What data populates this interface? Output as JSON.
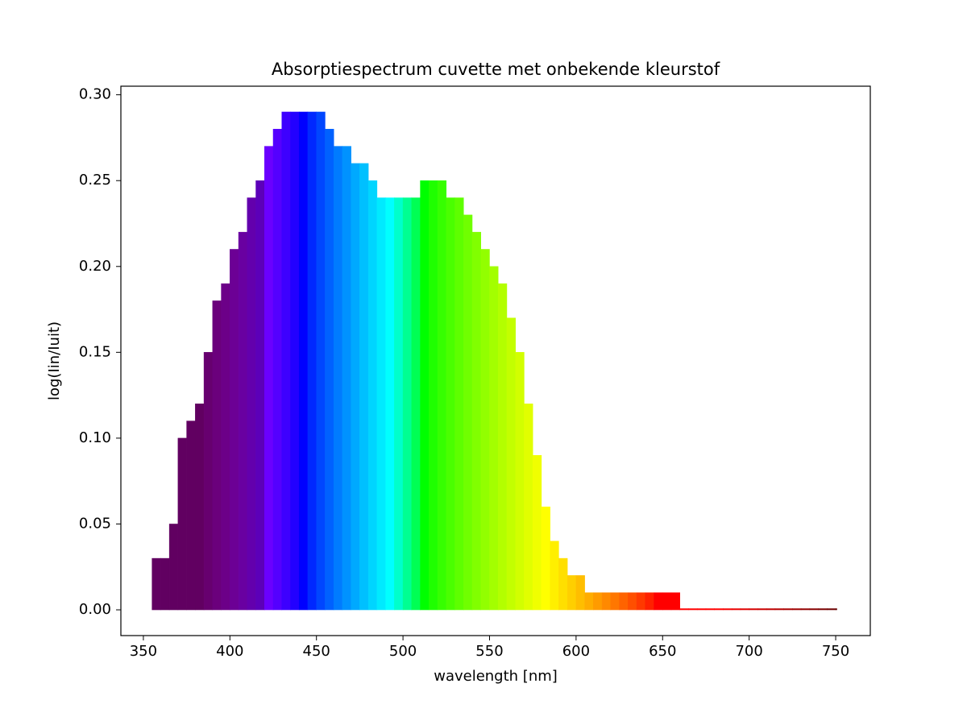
{
  "chart_data": {
    "type": "bar",
    "title": "Absorptiespectrum cuvette met onbekende kleurstof",
    "xlabel": "wavelength [nm]",
    "ylabel": "log(Iin/Iuit)",
    "x": [
      355,
      360,
      365,
      370,
      375,
      380,
      385,
      390,
      395,
      400,
      405,
      410,
      415,
      420,
      425,
      430,
      435,
      440,
      445,
      450,
      455,
      460,
      465,
      470,
      475,
      480,
      485,
      490,
      495,
      500,
      505,
      510,
      515,
      520,
      525,
      530,
      535,
      540,
      545,
      550,
      555,
      560,
      565,
      570,
      575,
      580,
      585,
      590,
      595,
      600,
      605,
      610,
      615,
      620,
      625,
      630,
      635,
      640,
      645,
      650,
      655,
      660,
      665,
      670,
      675,
      680,
      685,
      690,
      695,
      700,
      705,
      710,
      715,
      720,
      725,
      730,
      735,
      740,
      745,
      750
    ],
    "values": [
      0.03,
      0.03,
      0.05,
      0.1,
      0.11,
      0.12,
      0.15,
      0.18,
      0.19,
      0.21,
      0.22,
      0.24,
      0.25,
      0.27,
      0.28,
      0.29,
      0.29,
      0.29,
      0.29,
      0.29,
      0.28,
      0.27,
      0.27,
      0.26,
      0.26,
      0.25,
      0.24,
      0.24,
      0.24,
      0.24,
      0.24,
      0.25,
      0.25,
      0.25,
      0.24,
      0.24,
      0.23,
      0.22,
      0.21,
      0.2,
      0.19,
      0.17,
      0.15,
      0.12,
      0.09,
      0.06,
      0.04,
      0.03,
      0.02,
      0.02,
      0.01,
      0.01,
      0.01,
      0.01,
      0.01,
      0.01,
      0.01,
      0.01,
      0.01,
      0.01,
      0.01,
      0,
      0,
      0,
      0,
      0,
      0,
      0,
      0,
      0,
      0,
      0,
      0,
      0,
      0,
      0,
      0,
      0,
      0,
      0
    ],
    "xlim": [
      337,
      770
    ],
    "ylim": [
      -0.015,
      0.305
    ],
    "xticks": [
      350,
      400,
      450,
      500,
      550,
      600,
      650,
      700,
      750
    ],
    "yticks": [
      {
        "value": 0,
        "label": "0.00"
      },
      {
        "value": 0.05,
        "label": "0.05"
      },
      {
        "value": 0.1,
        "label": "0.10"
      },
      {
        "value": 0.15,
        "label": "0.15"
      },
      {
        "value": 0.2,
        "label": "0.20"
      },
      {
        "value": 0.25,
        "label": "0.25"
      },
      {
        "value": 0.3,
        "label": "0.30"
      }
    ],
    "grid": false
  }
}
